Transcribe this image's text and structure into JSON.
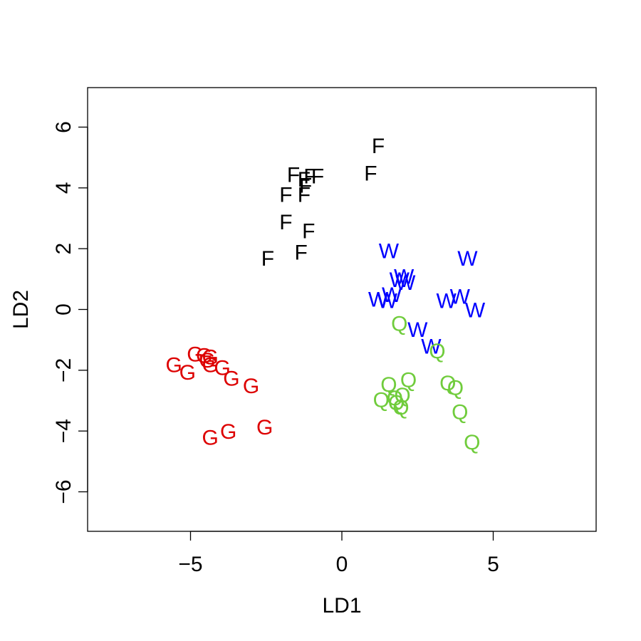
{
  "chart_data": {
    "type": "scatter",
    "title": "",
    "xlabel": "LD1",
    "ylabel": "LD2",
    "xlim": [
      -8.4,
      8.4
    ],
    "ylim": [
      -7.3,
      7.3
    ],
    "x_ticks": [
      -5,
      0,
      5
    ],
    "y_ticks": [
      -6,
      -4,
      -2,
      0,
      2,
      4,
      6
    ],
    "x_tick_labels": [
      "−5",
      "0",
      "5"
    ],
    "y_tick_labels": [
      "−6",
      "−4",
      "−2",
      "0",
      "2",
      "4",
      "6"
    ],
    "grid": false,
    "legend": "none",
    "series": [
      {
        "marker": "F",
        "color": "#000000",
        "points": [
          [
            1.2,
            5.4
          ],
          [
            0.95,
            4.5
          ],
          [
            -1.6,
            4.45
          ],
          [
            -1.05,
            4.4
          ],
          [
            -0.8,
            4.4
          ],
          [
            -1.25,
            4.3
          ],
          [
            -1.2,
            4.1
          ],
          [
            -1.85,
            3.8
          ],
          [
            -1.25,
            3.8
          ],
          [
            -1.85,
            2.9
          ],
          [
            -1.1,
            2.6
          ],
          [
            -1.35,
            1.9
          ],
          [
            -2.45,
            1.7
          ]
        ]
      },
      {
        "marker": "W",
        "color": "#0000ff",
        "points": [
          [
            1.55,
            1.95
          ],
          [
            4.15,
            1.7
          ],
          [
            2.05,
            1.1
          ],
          [
            1.9,
            1.0
          ],
          [
            2.1,
            0.9
          ],
          [
            1.65,
            0.5
          ],
          [
            3.9,
            0.45
          ],
          [
            1.2,
            0.35
          ],
          [
            1.5,
            0.3
          ],
          [
            3.45,
            0.3
          ],
          [
            4.4,
            0.0
          ],
          [
            2.5,
            -0.65
          ],
          [
            2.95,
            -1.2
          ]
        ]
      },
      {
        "marker": "Q",
        "color": "#70cc3c",
        "points": [
          [
            1.9,
            -0.45
          ],
          [
            3.15,
            -1.35
          ],
          [
            2.2,
            -2.3
          ],
          [
            1.55,
            -2.45
          ],
          [
            3.5,
            -2.4
          ],
          [
            3.75,
            -2.55
          ],
          [
            2.0,
            -2.8
          ],
          [
            1.75,
            -2.9
          ],
          [
            1.3,
            -2.95
          ],
          [
            1.8,
            -3.05
          ],
          [
            1.95,
            -3.2
          ],
          [
            3.9,
            -3.35
          ],
          [
            4.3,
            -4.35
          ]
        ]
      },
      {
        "marker": "G",
        "color": "#dd0000",
        "points": [
          [
            -4.85,
            -1.45
          ],
          [
            -4.55,
            -1.5
          ],
          [
            -4.35,
            -1.55
          ],
          [
            -4.45,
            -1.65
          ],
          [
            -5.55,
            -1.8
          ],
          [
            -4.35,
            -1.8
          ],
          [
            -3.95,
            -1.9
          ],
          [
            -5.1,
            -2.05
          ],
          [
            -3.65,
            -2.25
          ],
          [
            -3.0,
            -2.5
          ],
          [
            -2.55,
            -3.85
          ],
          [
            -3.75,
            -4.0
          ],
          [
            -4.35,
            -4.2
          ]
        ]
      }
    ]
  }
}
